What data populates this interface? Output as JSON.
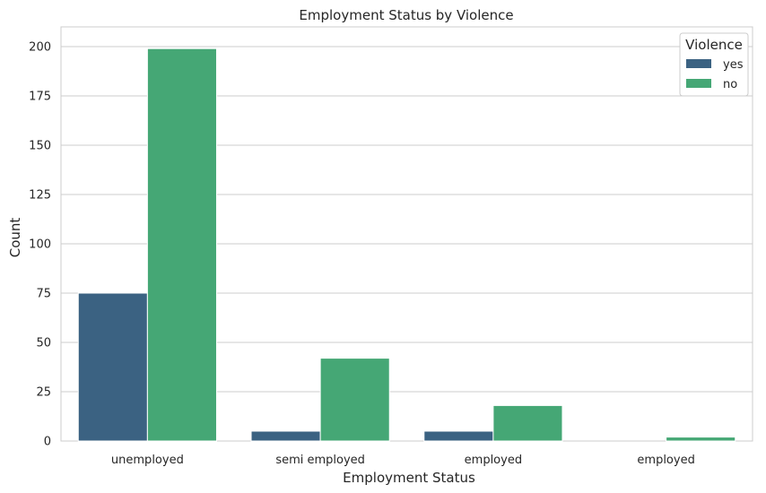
{
  "chart_data": {
    "type": "bar",
    "title": "Employment Status by Violence",
    "xlabel": "Employment Status",
    "ylabel": "Count",
    "categories": [
      "unemployed",
      "semi employed",
      "employed",
      "employed"
    ],
    "series": [
      {
        "name": "yes",
        "color": "#3b6282",
        "values": [
          75,
          5,
          5,
          0
        ]
      },
      {
        "name": "no",
        "color": "#45a775",
        "values": [
          199,
          42,
          18,
          2
        ]
      }
    ],
    "ylim": [
      0,
      210
    ],
    "yticks": [
      0,
      25,
      50,
      75,
      100,
      125,
      150,
      175,
      200
    ],
    "grid": true,
    "legend": {
      "title": "Violence",
      "position": "top-right"
    }
  }
}
